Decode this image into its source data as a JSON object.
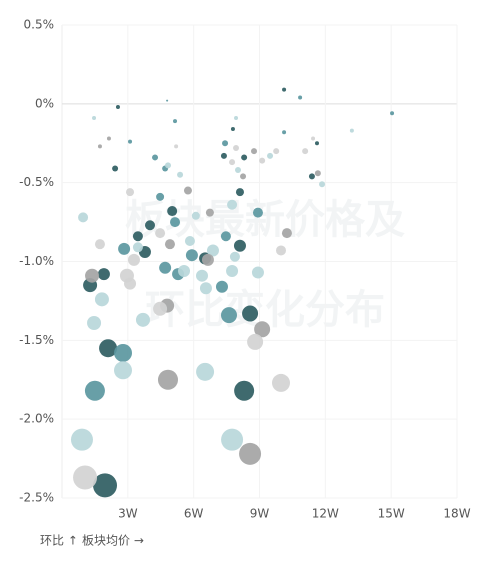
{
  "chart_data": {
    "type": "scatter",
    "watermark": [
      "板块最新价格及",
      "环比变化分布"
    ],
    "y_label": "环比 ↑",
    "x_label": "板块均价 →",
    "xlim": [
      0,
      18
    ],
    "ylim": [
      -2.5,
      0.5
    ],
    "xticks": [
      {
        "value": 3,
        "label": "3W"
      },
      {
        "value": 6,
        "label": "6W"
      },
      {
        "value": 9,
        "label": "9W"
      },
      {
        "value": 12,
        "label": "12W"
      },
      {
        "value": 15,
        "label": "15W"
      },
      {
        "value": 18,
        "label": "18W"
      }
    ],
    "yticks": [
      {
        "value": 0.5,
        "label": "0.5%"
      },
      {
        "value": 0,
        "label": "0%"
      },
      {
        "value": -0.5,
        "label": "-0.5%"
      },
      {
        "value": -1,
        "label": "-1.0%"
      },
      {
        "value": -1.5,
        "label": "-1.5%"
      },
      {
        "value": -2,
        "label": "-2.0%"
      },
      {
        "value": -2.5,
        "label": "-2.5%"
      }
    ],
    "grid": true,
    "series": [
      {
        "color": "#2f5d62",
        "x": [
          1.96,
          2.1,
          8.3,
          8.57,
          1.28,
          1.91,
          3.78,
          3.46,
          4.01,
          5.02,
          6.52,
          8.11,
          8.11,
          2.42,
          7.38,
          8.3,
          11.39,
          11.62,
          7.79,
          10.12,
          2.55
        ],
        "values": [
          -2.42,
          -1.55,
          -1.82,
          -1.33,
          -1.15,
          -1.08,
          -0.94,
          -0.84,
          -0.77,
          -0.68,
          -0.98,
          -0.9,
          -0.56,
          -0.41,
          -0.33,
          -0.34,
          -0.46,
          -0.25,
          -0.16,
          0.09,
          -0.02
        ],
        "sizes": [
          12,
          9,
          10,
          8,
          7,
          6,
          6,
          5,
          5,
          5,
          6,
          6,
          4,
          3,
          3,
          3,
          3,
          2,
          2,
          2,
          2
        ]
      },
      {
        "color": "#5b97a0",
        "x": [
          1.5,
          2.78,
          7.61,
          2.83,
          5.15,
          4.7,
          5.29,
          5.92,
          7.29,
          7.47,
          8.93,
          4.47,
          4.7,
          4.24,
          3.1,
          5.15,
          7.43,
          10.12,
          10.85,
          15.04,
          4.79
        ],
        "values": [
          -1.82,
          -1.58,
          -1.34,
          -0.92,
          -0.75,
          -1.04,
          -1.08,
          -0.96,
          -1.16,
          -0.84,
          -0.69,
          -0.59,
          -0.41,
          -0.34,
          -0.24,
          -0.11,
          -0.25,
          -0.18,
          0.04,
          -0.06,
          0.02
        ],
        "sizes": [
          10,
          9,
          8,
          6,
          5,
          6,
          6,
          6,
          6,
          5,
          5,
          4,
          3,
          3,
          2,
          2,
          3,
          2,
          2,
          2,
          1
        ]
      },
      {
        "color": "#b9d7da",
        "x": [
          0.91,
          2.78,
          6.52,
          7.75,
          3.69,
          1.46,
          1.82,
          0.96,
          3.46,
          5.56,
          5.83,
          6.38,
          6.56,
          6.88,
          7.75,
          7.88,
          8.93,
          7.75,
          6.1,
          5.38,
          4.83,
          8.02,
          9.48,
          11.85,
          7.93,
          13.21,
          1.46
        ],
        "values": [
          -2.13,
          -1.69,
          -1.7,
          -2.13,
          -1.37,
          -1.39,
          -1.24,
          -0.72,
          -0.91,
          -1.06,
          -0.87,
          -1.09,
          -1.17,
          -0.93,
          -1.06,
          -0.97,
          -1.07,
          -0.64,
          -0.71,
          -0.45,
          -0.39,
          -0.42,
          -0.33,
          -0.51,
          -0.09,
          -0.17,
          -0.09
        ],
        "sizes": [
          11,
          9,
          9,
          11,
          7,
          7,
          7,
          5,
          5,
          6,
          5,
          6,
          6,
          6,
          6,
          5,
          6,
          5,
          4,
          3,
          3,
          3,
          3,
          3,
          2,
          2,
          2
        ]
      },
      {
        "color": "#a4a4a4",
        "x": [
          4.83,
          8.57,
          9.12,
          4.79,
          1.37,
          4.92,
          6.65,
          10.25,
          6.74,
          5.74,
          1.73,
          2.14,
          8.25,
          8.75,
          11.66
        ],
        "values": [
          -1.75,
          -2.22,
          -1.43,
          -1.28,
          -1.09,
          -0.89,
          -0.99,
          -0.82,
          -0.69,
          -0.55,
          -0.27,
          -0.22,
          -0.46,
          -0.3,
          -0.44
        ],
        "sizes": [
          10,
          11,
          8,
          7,
          7,
          5,
          6,
          5,
          4,
          4,
          2,
          2,
          3,
          3,
          3
        ]
      },
      {
        "color": "#d3d3d3",
        "x": [
          1.05,
          9.98,
          8.8,
          4.47,
          2.96,
          3.1,
          3.28,
          1.73,
          4.47,
          9.98,
          3.1,
          5.2,
          7.75,
          7.93,
          9.12,
          9.76,
          11.08,
          11.44
        ],
        "values": [
          -2.37,
          -1.77,
          -1.51,
          -1.3,
          -1.09,
          -1.14,
          -0.99,
          -0.89,
          -0.82,
          -0.93,
          -0.56,
          -0.27,
          -0.37,
          -0.28,
          -0.36,
          -0.3,
          -0.3,
          -0.22
        ],
        "sizes": [
          12,
          9,
          8,
          7,
          7,
          6,
          6,
          5,
          5,
          5,
          4,
          2,
          3,
          3,
          3,
          3,
          3,
          2
        ]
      }
    ]
  }
}
